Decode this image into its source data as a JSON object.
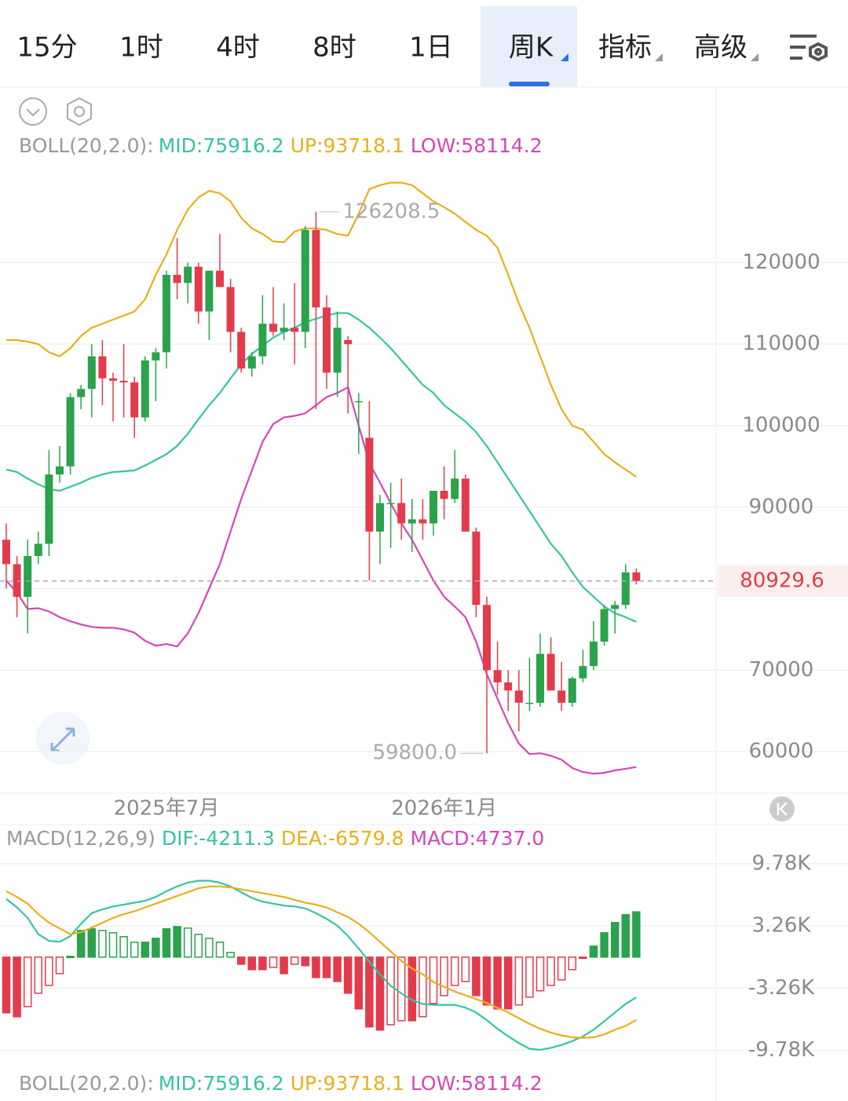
{
  "tabs": [
    "15分",
    "1时",
    "4时",
    "8时",
    "1日",
    "周K",
    "指标",
    "高级"
  ],
  "active_tab": 5,
  "chart_data": [
    {
      "type": "candlestick",
      "indicator": "BOLL(20,2.0):",
      "categories": [
        null,
        null,
        null,
        null,
        null,
        null,
        null,
        null,
        null,
        null,
        null,
        null,
        null,
        null,
        null,
        "2025年7月",
        null,
        null,
        null,
        null,
        null,
        null,
        null,
        null,
        null,
        null,
        null,
        null,
        null,
        null,
        null,
        null,
        null,
        null,
        null,
        null,
        null,
        null,
        null,
        null,
        null,
        "2026年1月",
        null,
        null,
        null,
        null,
        null,
        null,
        null,
        null,
        null,
        null,
        null,
        null,
        null,
        null,
        null,
        null,
        null,
        null
      ],
      "open": [
        86000,
        83000,
        79000,
        84000,
        85500,
        94000,
        95000,
        103500,
        104500,
        108500,
        105800,
        105500,
        105300,
        101000,
        108000,
        109000,
        118500,
        117500,
        119500,
        114000,
        119000,
        117000,
        111500,
        107000,
        108500,
        112500,
        111500,
        112000,
        111500,
        124000,
        114500,
        106500,
        110500,
        103000,
        98500,
        87000,
        90500,
        90500,
        88000,
        88500,
        88000,
        92000,
        91000,
        93500,
        87000,
        78000,
        70000,
        68500,
        67500,
        66000,
        66000,
        72000,
        67500,
        66000,
        69000,
        70500,
        73500,
        77500,
        78000,
        82000
      ],
      "high": [
        88000,
        84000,
        86000,
        87000,
        97000,
        97500,
        104000,
        105000,
        110000,
        110500,
        106500,
        110000,
        106000,
        108500,
        109500,
        119000,
        123000,
        120000,
        120000,
        119000,
        123500,
        118000,
        112000,
        109000,
        116000,
        117000,
        115000,
        117500,
        124500,
        126208.5,
        116000,
        114000,
        111000,
        104000,
        103000,
        91500,
        93000,
        93500,
        91000,
        91000,
        92000,
        95000,
        97000,
        94000,
        87500,
        79000,
        73500,
        70000,
        70000,
        71500,
        74500,
        74000,
        71000,
        69200,
        72500,
        76000,
        78000,
        78500,
        83000,
        82500
      ],
      "low": [
        80000,
        76500,
        74500,
        83000,
        84000,
        93000,
        94000,
        102000,
        101000,
        102500,
        100500,
        101000,
        98500,
        100500,
        103000,
        107000,
        115500,
        115000,
        112500,
        110500,
        117000,
        109000,
        106500,
        106000,
        107500,
        111000,
        110500,
        107500,
        109500,
        102000,
        104500,
        103500,
        101500,
        96500,
        81000,
        83000,
        85000,
        86000,
        84500,
        86000,
        86500,
        88500,
        90500,
        87000,
        76500,
        59800,
        67000,
        65000,
        62500,
        65000,
        65500,
        67500,
        65000,
        65500,
        68500,
        70000,
        73000,
        74500,
        77500,
        80500
      ],
      "close": [
        83000,
        79000,
        84000,
        85500,
        94000,
        95000,
        103500,
        104500,
        108500,
        105800,
        105500,
        105300,
        101000,
        108000,
        109000,
        118500,
        117500,
        119500,
        114000,
        119000,
        117000,
        111500,
        107000,
        108500,
        112500,
        111500,
        112000,
        111500,
        124000,
        114500,
        106500,
        112000,
        110000,
        103000,
        87000,
        90500,
        90500,
        88000,
        88500,
        88000,
        92000,
        91000,
        93500,
        87000,
        78000,
        70000,
        68500,
        67500,
        66000,
        66000,
        72000,
        67500,
        66000,
        69000,
        70500,
        73500,
        77500,
        78000,
        82000,
        80929.6
      ],
      "up_color": "#2ba24c",
      "down_color": "#e23c4c",
      "series": [
        {
          "name": "MID:75916.2",
          "color": "#36c3a4",
          "values": [
            94600,
            94300,
            93500,
            92800,
            92200,
            92000,
            92500,
            93000,
            93600,
            94000,
            94300,
            94400,
            94500,
            95100,
            95800,
            96500,
            97500,
            99000,
            100800,
            102500,
            104000,
            105800,
            107500,
            108800,
            109800,
            110800,
            111500,
            112000,
            112700,
            113100,
            113500,
            113800,
            113800,
            113000,
            112000,
            110800,
            109500,
            108000,
            106500,
            105000,
            104000,
            102500,
            101500,
            100500,
            99200,
            97500,
            95500,
            93500,
            91500,
            89500,
            87500,
            85500,
            84000,
            82000,
            80200,
            79000,
            77800,
            77000,
            76500,
            75916.2
          ]
        },
        {
          "name": "UP:93718.1",
          "color": "#e6b01c",
          "values": [
            110500,
            110500,
            110300,
            110000,
            109000,
            108500,
            109500,
            111000,
            112000,
            112500,
            113000,
            113500,
            114000,
            115500,
            118500,
            121000,
            124000,
            126500,
            128000,
            128800,
            128500,
            127500,
            125500,
            124200,
            123500,
            122600,
            122500,
            123800,
            124200,
            124200,
            124000,
            123500,
            123300,
            126000,
            129000,
            129500,
            129800,
            129800,
            129500,
            128500,
            127500,
            126800,
            126000,
            125000,
            124000,
            123300,
            121800,
            118500,
            115000,
            112000,
            108500,
            105000,
            102000,
            100000,
            99500,
            98000,
            96500,
            95500,
            94600,
            93718.1
          ]
        },
        {
          "name": "LOW:58114.2",
          "color": "#d447b6",
          "values": [
            81000,
            79500,
            77500,
            77600,
            77200,
            76500,
            76000,
            75600,
            75300,
            75200,
            75200,
            75000,
            74600,
            73600,
            73000,
            73200,
            72900,
            74500,
            77000,
            80000,
            83000,
            87000,
            91000,
            94500,
            98000,
            100200,
            101000,
            101200,
            101500,
            102500,
            103500,
            104000,
            104700,
            100000,
            95400,
            93000,
            90500,
            88000,
            86000,
            83500,
            81000,
            79000,
            77800,
            76500,
            73500,
            69500,
            66500,
            63500,
            61000,
            59700,
            59800,
            59500,
            59000,
            58000,
            57500,
            57300,
            57400,
            57700,
            57900,
            58114.2
          ]
        }
      ],
      "ylim": [
        55100,
        131500
      ],
      "yticks": [
        60000,
        70000,
        80000,
        90000,
        100000,
        110000,
        120000
      ],
      "grid": true,
      "last_price": 80929.6,
      "max_mark": 126208.5,
      "min_mark": {
        "value": 59800,
        "label": "59800.0"
      }
    },
    {
      "type": "macd",
      "indicator": "MACD(12,26,9)",
      "series": [
        {
          "name": "DIF:-4211.3",
          "color": "#36c3a4",
          "values": [
            6100,
            5200,
            4100,
            2400,
            1700,
            1600,
            2200,
            3500,
            4600,
            5000,
            5300,
            5500,
            5700,
            5900,
            6300,
            6900,
            7400,
            7800,
            8000,
            8000,
            7800,
            7400,
            6800,
            6200,
            5800,
            5600,
            5400,
            5300,
            5100,
            4600,
            4000,
            3300,
            2200,
            900,
            -500,
            -1800,
            -3000,
            -3800,
            -4500,
            -4900,
            -5000,
            -5000,
            -5000,
            -5300,
            -5800,
            -6600,
            -7500,
            -8300,
            -9000,
            -9600,
            -9700,
            -9500,
            -9200,
            -8800,
            -8300,
            -7600,
            -6700,
            -5800,
            -4900,
            -4211.3
          ]
        },
        {
          "name": "DEA:-6579.8",
          "color": "#e6b01c",
          "values": [
            6900,
            6300,
            5600,
            4500,
            3600,
            3000,
            2400,
            2600,
            3100,
            3600,
            4100,
            4500,
            4800,
            5200,
            5600,
            6000,
            6400,
            6800,
            7200,
            7400,
            7400,
            7300,
            7100,
            6900,
            6700,
            6500,
            6300,
            6000,
            5700,
            5500,
            5200,
            4700,
            4200,
            3500,
            2600,
            1600,
            600,
            -400,
            -1200,
            -1800,
            -2600,
            -3100,
            -3600,
            -4000,
            -4400,
            -4800,
            -5300,
            -5800,
            -6400,
            -7000,
            -7500,
            -7900,
            -8200,
            -8400,
            -8450,
            -8400,
            -8100,
            -7600,
            -7200,
            -6579.8
          ]
        },
        {
          "name": "MACD:4737.0",
          "color": "#d447b6",
          "values": [
            -5830,
            -6240,
            -5180,
            -3780,
            -2960,
            -1730,
            80,
            2790,
            2960,
            2790,
            2550,
            2140,
            1560,
            1560,
            1970,
            2960,
            3200,
            3040,
            2380,
            1970,
            1560,
            490,
            -740,
            -1310,
            -1310,
            -1070,
            -1730,
            -740,
            -900,
            -2140,
            -2140,
            -2550,
            -3780,
            -5420,
            -7310,
            -7640,
            -7070,
            -6660,
            -6660,
            -6240,
            -4850,
            -4030,
            -2960,
            -2550,
            -4030,
            -5010,
            -5420,
            -5420,
            -5010,
            -4190,
            -3530,
            -2960,
            -2380,
            -1310,
            -80,
            1150,
            2550,
            3620,
            4440,
            4737.0
          ]
        }
      ],
      "up_color": "#2ba24c",
      "down_color": "#e23c4c",
      "ylim": [
        -11200,
        11000
      ],
      "yticks": [
        {
          "value": 9780,
          "label": "9.78K"
        },
        {
          "value": 3260,
          "label": "3.26K"
        },
        {
          "value": -3260,
          "label": "-3.26K"
        },
        {
          "value": -9780,
          "label": "-9.78K"
        }
      ],
      "grid": true
    }
  ]
}
